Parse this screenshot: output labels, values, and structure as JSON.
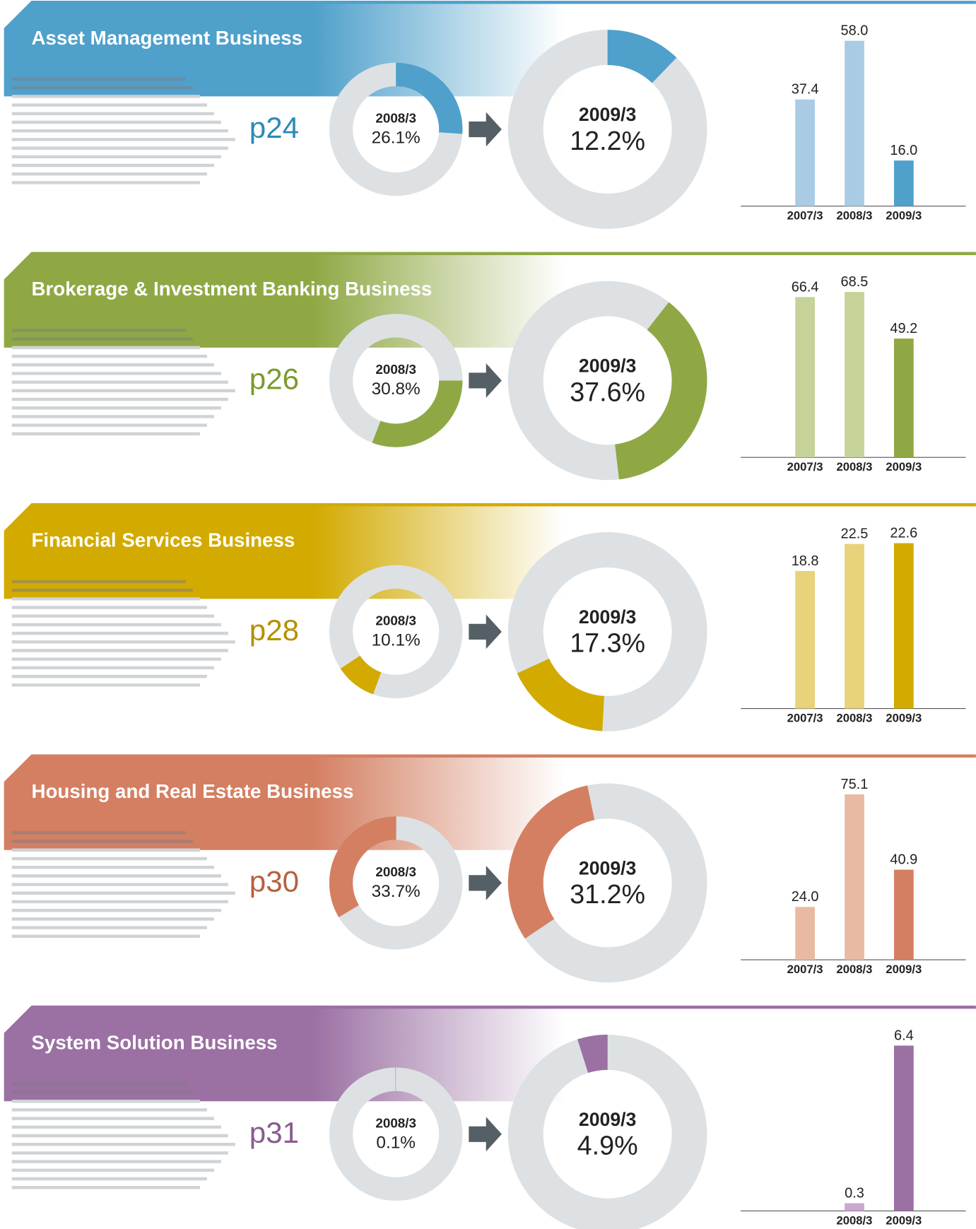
{
  "chart_data": [
    {
      "type": "donut",
      "title": "Asset Management Business",
      "page": "p24",
      "categories": [
        "2008/3",
        "2009/3"
      ],
      "values": [
        26.1,
        12.2
      ],
      "value_labels": [
        "26.1%",
        "12.2%"
      ],
      "color": "#4fa0cb",
      "light_color": "#a9cce4",
      "page_color": "#2a8ab9",
      "bar_chart": {
        "type": "bar",
        "categories": [
          "2007/3",
          "2008/3",
          "2009/3"
        ],
        "values": [
          37.4,
          58,
          16
        ],
        "value_labels": [
          "37.4",
          "58.0",
          "16.0"
        ]
      }
    },
    {
      "type": "donut",
      "title": "Brokerage & Investment Banking Business",
      "page": "p26",
      "categories": [
        "2008/3",
        "2009/3"
      ],
      "values": [
        30.8,
        37.6
      ],
      "value_labels": [
        "30.8%",
        "37.6%"
      ],
      "color": "#8fa844",
      "light_color": "#c5d298",
      "page_color": "#7c9a2c",
      "bar_chart": {
        "type": "bar",
        "categories": [
          "2007/3",
          "2008/3",
          "2009/3"
        ],
        "values": [
          66.4,
          68.5,
          49.2
        ],
        "value_labels": [
          "66.4",
          "68.5",
          "49.2"
        ]
      }
    },
    {
      "type": "donut",
      "title": "Financial Services Business",
      "page": "p28",
      "categories": [
        "2008/3",
        "2009/3"
      ],
      "values": [
        10.1,
        17.3
      ],
      "value_labels": [
        "10.1%",
        "17.3%"
      ],
      "color": "#d2aa00",
      "light_color": "#e8d27a",
      "page_color": "#b59000",
      "bar_chart": {
        "type": "bar",
        "categories": [
          "2007/3",
          "2008/3",
          "2009/3"
        ],
        "values": [
          18.8,
          22.5,
          22.6
        ],
        "value_labels": [
          "18.8",
          "22.5",
          "22.6"
        ]
      }
    },
    {
      "type": "donut",
      "title": "Housing and Real Estate Business",
      "page": "p30",
      "categories": [
        "2008/3",
        "2009/3"
      ],
      "values": [
        33.7,
        31.2
      ],
      "value_labels": [
        "33.7%",
        "31.2%"
      ],
      "color": "#d47f62",
      "light_color": "#e9baa3",
      "page_color": "#b86040",
      "bar_chart": {
        "type": "bar",
        "categories": [
          "2007/3",
          "2008/3",
          "2009/3"
        ],
        "values": [
          24,
          75.1,
          40.9
        ],
        "value_labels": [
          "24.0",
          "75.1",
          "40.9"
        ]
      }
    },
    {
      "type": "donut",
      "title": "System Solution Business",
      "page": "p31",
      "categories": [
        "2008/3",
        "2009/3"
      ],
      "values": [
        0.1,
        4.9
      ],
      "value_labels": [
        "0.1%",
        "4.9%"
      ],
      "color": "#9b70a3",
      "light_color": "#c9a9cd",
      "page_color": "#8a5a91",
      "bar_chart": {
        "type": "bar",
        "categories": [
          "2008/3",
          "2009/3"
        ],
        "values": [
          0.3,
          6.4
        ],
        "value_labels": [
          "0.3",
          "6.4"
        ]
      }
    }
  ]
}
